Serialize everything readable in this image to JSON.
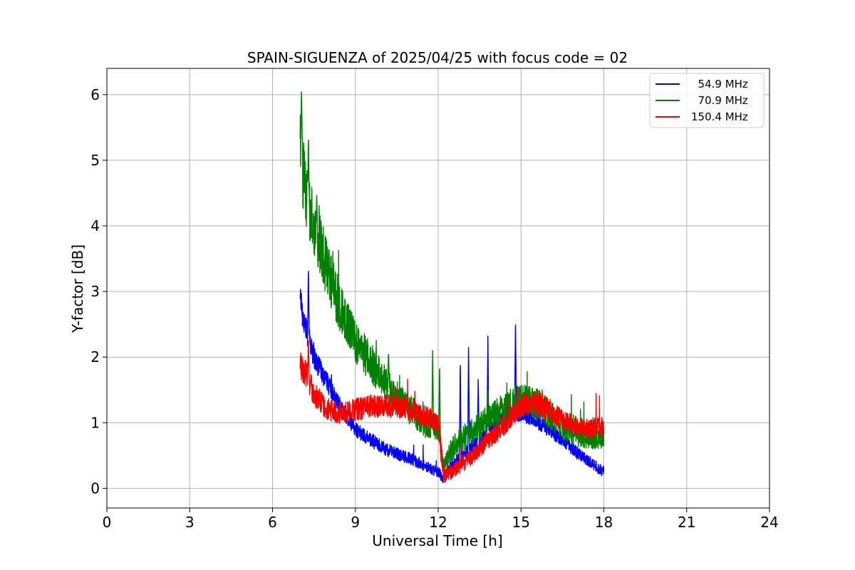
{
  "chart_data": {
    "type": "line",
    "title": "SPAIN-SIGUENZA of 2025/04/25 with focus code = 02",
    "xlabel": "Universal Time [h]",
    "ylabel": "Y-factor [dB]",
    "xlim": [
      0,
      24
    ],
    "ylim": [
      -0.3,
      6.4
    ],
    "xticks": [
      "0",
      "3",
      "6",
      "9",
      "12",
      "15",
      "18",
      "21",
      "24"
    ],
    "yticks": [
      "0",
      "1",
      "2",
      "3",
      "4",
      "5",
      "6"
    ],
    "grid": true,
    "legend_position": "top-right",
    "series": [
      {
        "name": "  54.9 MHz",
        "color": "#0000ff",
        "noise": 0.12,
        "x": [
          7.0,
          7.1,
          7.3,
          7.5,
          7.8,
          8.0,
          8.3,
          8.6,
          9.0,
          9.5,
          10.0,
          10.5,
          11.0,
          11.5,
          12.0,
          12.2,
          12.5,
          13.0,
          13.5,
          14.0,
          14.5,
          15.0,
          15.5,
          16.0,
          16.5,
          17.0,
          17.5,
          18.0
        ],
        "y": [
          3.0,
          2.6,
          2.3,
          2.0,
          1.75,
          1.6,
          1.35,
          1.15,
          0.9,
          0.75,
          0.62,
          0.52,
          0.45,
          0.35,
          0.25,
          0.15,
          0.35,
          0.55,
          0.75,
          0.95,
          1.1,
          1.15,
          1.05,
          0.9,
          0.75,
          0.55,
          0.4,
          0.25
        ],
        "spikes": [
          {
            "x": 12.8,
            "y": 2.0
          },
          {
            "x": 13.1,
            "y": 2.25
          },
          {
            "x": 13.8,
            "y": 2.35
          },
          {
            "x": 14.8,
            "y": 2.65
          },
          {
            "x": 7.3,
            "y": 3.4
          },
          {
            "x": 13.45,
            "y": 1.7
          }
        ]
      },
      {
        "name": "  70.9 MHz",
        "color": "#008000",
        "noise": 0.22,
        "x": [
          7.0,
          7.1,
          7.3,
          7.6,
          8.0,
          8.5,
          9.0,
          9.5,
          10.0,
          10.5,
          11.0,
          11.5,
          12.0,
          12.2,
          12.5,
          13.0,
          13.5,
          14.0,
          14.5,
          15.0,
          15.5,
          16.0,
          16.5,
          17.0,
          17.5,
          18.0
        ],
        "y": [
          5.6,
          4.8,
          4.3,
          3.9,
          3.3,
          2.7,
          2.25,
          1.95,
          1.65,
          1.4,
          1.2,
          1.0,
          0.85,
          0.3,
          0.6,
          0.8,
          0.95,
          1.1,
          1.25,
          1.35,
          1.3,
          1.15,
          0.95,
          0.85,
          0.8,
          0.8
        ],
        "spikes": [
          {
            "x": 7.05,
            "y": 6.1
          },
          {
            "x": 7.3,
            "y": 5.4
          },
          {
            "x": 7.6,
            "y": 4.5
          },
          {
            "x": 11.8,
            "y": 2.15
          },
          {
            "x": 12.05,
            "y": 1.95
          },
          {
            "x": 10.2,
            "y": 2.1
          }
        ]
      },
      {
        "name": "150.4 MHz",
        "color": "#ff0000",
        "noise": 0.16,
        "x": [
          7.0,
          7.2,
          7.5,
          8.0,
          8.5,
          9.0,
          9.5,
          10.0,
          10.5,
          11.0,
          11.5,
          12.0,
          12.2,
          12.5,
          13.0,
          13.5,
          14.0,
          14.5,
          15.0,
          15.5,
          16.0,
          16.5,
          17.0,
          17.5,
          18.0
        ],
        "y": [
          1.9,
          1.75,
          1.45,
          1.2,
          1.15,
          1.2,
          1.25,
          1.25,
          1.25,
          1.2,
          1.1,
          1.0,
          0.2,
          0.25,
          0.4,
          0.6,
          0.8,
          1.0,
          1.25,
          1.3,
          1.2,
          1.05,
          0.95,
          0.9,
          0.95
        ],
        "spikes": [
          {
            "x": 7.3,
            "y": 2.3
          }
        ]
      }
    ]
  }
}
